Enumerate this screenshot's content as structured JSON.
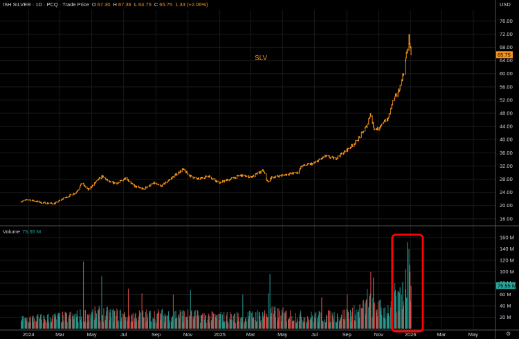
{
  "header": {
    "symbol_name": "ISH SILVER",
    "interval": "1D",
    "exchange": "PCQ",
    "price_type": "Trade Price",
    "o_label": "O",
    "o_value": "67.30",
    "h_label": "H",
    "h_value": "67.36",
    "l_label": "L",
    "l_value": "64.75",
    "c_label": "C",
    "c_value": "65.75",
    "change": "1.33 (+2.06%)"
  },
  "currency": "USD",
  "volume_pane": {
    "label": "Volume",
    "value": "75.55 M",
    "last_badge": "75.55 M"
  },
  "colors": {
    "price": "#f7931a",
    "up": "#26a69a",
    "down": "#ef5350",
    "highlight": "#ff0000",
    "background": "#000000"
  },
  "chart_data": {
    "type": "line",
    "series_label": "SLV",
    "last_price": "65.75",
    "price_axis": {
      "ylim": [
        14.5,
        79
      ],
      "ticks": [
        "76.00",
        "72.00",
        "68.00",
        "64.00",
        "60.00",
        "56.00",
        "52.00",
        "48.00",
        "44.00",
        "40.00",
        "36.00",
        "32.00",
        "28.00",
        "24.00",
        "20.00",
        "16.00"
      ]
    },
    "volume_axis": {
      "ylim": [
        0,
        170
      ],
      "unit": "M",
      "ticks": [
        "160 M",
        "140 M",
        "120 M",
        "100 M",
        "80 M",
        "60 M",
        "40 M",
        "20 M"
      ]
    },
    "time_axis": {
      "ticks": [
        "2024",
        "Mar",
        "May",
        "Jul",
        "Sep",
        "Nov",
        "2025",
        "Mar",
        "May",
        "Jul",
        "Sep",
        "Nov",
        "2026",
        "Mar",
        "May"
      ]
    },
    "price_anchors": [
      [
        "2023-12-18",
        21.3
      ],
      [
        "2024-01-02",
        21.8
      ],
      [
        "2024-01-25",
        20.9
      ],
      [
        "2024-02-20",
        20.6
      ],
      [
        "2024-03-05",
        21.9
      ],
      [
        "2024-04-01",
        24.0
      ],
      [
        "2024-04-12",
        26.8
      ],
      [
        "2024-04-24",
        24.8
      ],
      [
        "2024-05-20",
        28.9
      ],
      [
        "2024-06-05",
        27.0
      ],
      [
        "2024-06-20",
        26.8
      ],
      [
        "2024-07-05",
        28.5
      ],
      [
        "2024-07-20",
        26.0
      ],
      [
        "2024-08-07",
        25.0
      ],
      [
        "2024-08-28",
        26.8
      ],
      [
        "2024-09-10",
        25.8
      ],
      [
        "2024-09-30",
        28.3
      ],
      [
        "2024-10-22",
        31.0
      ],
      [
        "2024-11-05",
        29.0
      ],
      [
        "2024-11-20",
        28.0
      ],
      [
        "2024-12-10",
        29.0
      ],
      [
        "2024-12-31",
        26.9
      ],
      [
        "2025-01-20",
        28.0
      ],
      [
        "2025-02-10",
        29.2
      ],
      [
        "2025-03-01",
        28.6
      ],
      [
        "2025-03-25",
        30.6
      ],
      [
        "2025-04-03",
        27.0
      ],
      [
        "2025-04-10",
        28.5
      ],
      [
        "2025-05-10",
        29.5
      ],
      [
        "2025-05-30",
        30.0
      ],
      [
        "2025-06-06",
        32.0
      ],
      [
        "2025-06-30",
        32.8
      ],
      [
        "2025-07-22",
        35.0
      ],
      [
        "2025-08-10",
        34.2
      ],
      [
        "2025-08-30",
        36.6
      ],
      [
        "2025-09-20",
        39.5
      ],
      [
        "2025-10-08",
        43.8
      ],
      [
        "2025-10-16",
        47.8
      ],
      [
        "2025-10-23",
        43.5
      ],
      [
        "2025-11-03",
        43.2
      ],
      [
        "2025-11-12",
        46.0
      ],
      [
        "2025-11-18",
        45.8
      ],
      [
        "2025-11-28",
        51.5
      ],
      [
        "2025-12-10",
        55.0
      ],
      [
        "2025-12-19",
        60.5
      ],
      [
        "2025-12-29",
        71.0
      ],
      [
        "2026-01-02",
        65.75
      ]
    ],
    "volume_profile": [
      [
        "2023-12-18",
        16
      ],
      [
        "2024-03-15",
        20
      ],
      [
        "2024-05-15",
        26
      ],
      [
        "2024-07-15",
        22
      ],
      [
        "2024-10-15",
        24
      ],
      [
        "2024-12-15",
        20
      ],
      [
        "2025-02-15",
        20
      ],
      [
        "2025-04-15",
        26
      ],
      [
        "2025-06-15",
        20
      ],
      [
        "2025-08-15",
        22
      ],
      [
        "2025-09-20",
        28
      ],
      [
        "2025-10-15",
        42
      ],
      [
        "2025-11-15",
        30
      ],
      [
        "2025-12-10",
        50
      ],
      [
        "2025-12-28",
        90
      ],
      [
        "2026-01-02",
        75.55
      ]
    ],
    "volume_spikes": [
      [
        "2024-04-15",
        118
      ],
      [
        "2024-05-20",
        92
      ],
      [
        "2024-07-10",
        70
      ],
      [
        "2024-08-05",
        62
      ],
      [
        "2024-10-04",
        60
      ],
      [
        "2024-11-06",
        68
      ],
      [
        "2025-02-14",
        60
      ],
      [
        "2025-04-04",
        62
      ],
      [
        "2025-04-07",
        96
      ],
      [
        "2025-07-15",
        55
      ],
      [
        "2025-09-02",
        60
      ],
      [
        "2025-10-10",
        70
      ],
      [
        "2025-10-17",
        100
      ],
      [
        "2025-10-22",
        90
      ],
      [
        "2025-12-02",
        80
      ],
      [
        "2025-12-09",
        66
      ],
      [
        "2025-12-17",
        82
      ],
      [
        "2025-12-26",
        152
      ],
      [
        "2025-12-29",
        140
      ],
      [
        "2025-12-30",
        112
      ]
    ],
    "highlight": {
      "from": "2025-12-01",
      "to": "2026-01-02",
      "pane": "volume"
    }
  }
}
